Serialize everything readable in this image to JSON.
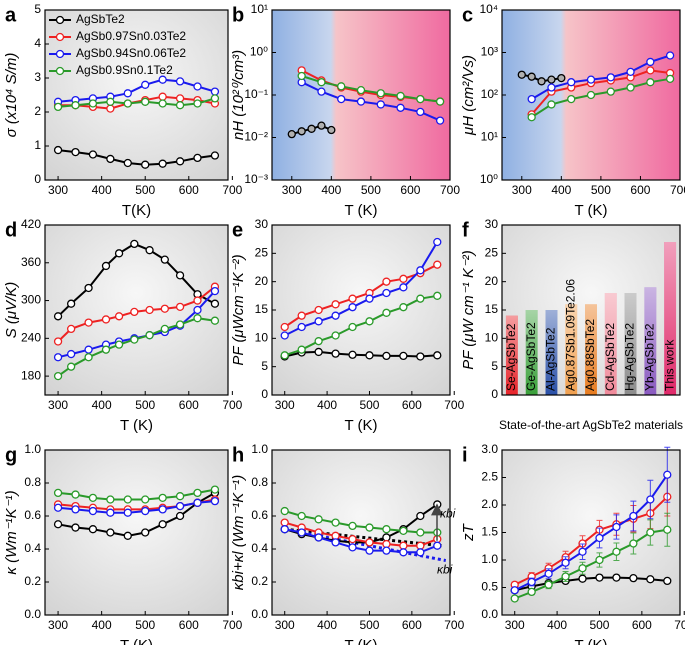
{
  "chart_data": [
    {
      "type": "line",
      "label": "a",
      "xlabel": "T(K)",
      "ylabel": "σ (x10⁴ S/m)",
      "legend": "upper left",
      "xlim": [
        270,
        690
      ],
      "xticks": [
        300,
        400,
        500,
        600,
        700
      ],
      "ylim": [
        0,
        5
      ],
      "yticks": [
        0,
        1,
        2,
        3,
        4,
        5
      ],
      "x": [
        300,
        340,
        380,
        420,
        460,
        500,
        540,
        580,
        620,
        660
      ],
      "series": [
        {
          "name": "AgSbTe2",
          "color": "#000000",
          "values": [
            0.88,
            0.82,
            0.75,
            0.62,
            0.5,
            0.45,
            0.48,
            0.55,
            0.65,
            0.72
          ]
        },
        {
          "name": "AgSb0.97Sn0.03Te2",
          "color": "#ee2222",
          "values": [
            2.2,
            2.2,
            2.15,
            2.1,
            2.25,
            2.35,
            2.45,
            2.4,
            2.35,
            2.25
          ]
        },
        {
          "name": "AgSb0.94Sn0.06Te2",
          "color": "#1a1aee",
          "values": [
            2.3,
            2.35,
            2.4,
            2.45,
            2.55,
            2.8,
            2.95,
            2.9,
            2.75,
            2.6
          ]
        },
        {
          "name": "AgSb0.9Sn0.1Te2",
          "color": "#2a9a2a",
          "values": [
            2.15,
            2.2,
            2.25,
            2.3,
            2.25,
            2.3,
            2.25,
            2.2,
            2.25,
            2.4
          ]
        }
      ]
    },
    {
      "type": "line",
      "label": "b",
      "xlabel": "T (K)",
      "ylabel": "nH (10²⁰/cm³)",
      "yscale": "log",
      "xlim": [
        250,
        700
      ],
      "xticks": [
        300,
        400,
        500,
        600,
        700
      ],
      "ylim": [
        0.001,
        10
      ],
      "yticks": [
        {
          "value": 0.001,
          "label": "10⁻³"
        },
        {
          "value": 0.01,
          "label": "10⁻²"
        },
        {
          "value": 0.1,
          "label": "10⁻¹"
        },
        {
          "value": 1,
          "label": "10⁰"
        },
        {
          "value": 10,
          "label": "10¹"
        }
      ],
      "series": [
        {
          "color": "#000000",
          "marker_fill": "#b0b0b0",
          "x": [
            300,
            325,
            350,
            375,
            400
          ],
          "values": [
            0.012,
            0.014,
            0.016,
            0.019,
            0.015
          ]
        },
        {
          "color": "#ee2222",
          "x": [
            325,
            375,
            425,
            475,
            525,
            575,
            625,
            675
          ],
          "values": [
            0.38,
            0.22,
            0.15,
            0.12,
            0.1,
            0.09,
            0.08,
            0.07
          ]
        },
        {
          "color": "#1a1aee",
          "x": [
            325,
            375,
            425,
            475,
            525,
            575,
            625,
            675
          ],
          "values": [
            0.2,
            0.12,
            0.08,
            0.07,
            0.06,
            0.05,
            0.04,
            0.025
          ]
        },
        {
          "color": "#2a9a2a",
          "x": [
            325,
            375,
            425,
            475,
            525,
            575,
            625,
            675
          ],
          "values": [
            0.28,
            0.2,
            0.16,
            0.13,
            0.11,
            0.095,
            0.08,
            0.07
          ]
        }
      ]
    },
    {
      "type": "line",
      "label": "c",
      "xlabel": "T (K)",
      "ylabel": "μH (cm²/Vs)",
      "yscale": "log",
      "xlim": [
        250,
        700
      ],
      "xticks": [
        300,
        400,
        500,
        600,
        700
      ],
      "ylim": [
        1,
        10000
      ],
      "yticks": [
        {
          "value": 1,
          "label": "10⁰"
        },
        {
          "value": 10,
          "label": "10¹"
        },
        {
          "value": 100,
          "label": "10²"
        },
        {
          "value": 1000,
          "label": "10³"
        },
        {
          "value": 10000,
          "label": "10⁴"
        }
      ],
      "series": [
        {
          "color": "#000000",
          "marker_fill": "#b0b0b0",
          "x": [
            300,
            325,
            350,
            375,
            400
          ],
          "values": [
            300,
            270,
            210,
            230,
            250
          ]
        },
        {
          "color": "#ee2222",
          "x": [
            325,
            375,
            425,
            475,
            525,
            575,
            625,
            675
          ],
          "values": [
            35,
            120,
            150,
            190,
            220,
            260,
            380,
            330
          ]
        },
        {
          "color": "#1a1aee",
          "x": [
            325,
            375,
            425,
            475,
            525,
            575,
            625,
            675
          ],
          "values": [
            80,
            150,
            200,
            230,
            260,
            350,
            600,
            850
          ]
        },
        {
          "color": "#2a9a2a",
          "x": [
            325,
            375,
            425,
            475,
            525,
            575,
            625,
            675
          ],
          "values": [
            30,
            60,
            80,
            100,
            120,
            150,
            200,
            240
          ]
        }
      ]
    },
    {
      "type": "line",
      "label": "d",
      "xlabel": "T (K)",
      "ylabel": "S (μV/K)",
      "xlim": [
        270,
        690
      ],
      "xticks": [
        300,
        400,
        500,
        600,
        700
      ],
      "ylim": [
        150,
        420
      ],
      "yticks": [
        180,
        240,
        300,
        360,
        420
      ],
      "x": [
        300,
        330,
        370,
        410,
        440,
        475,
        510,
        545,
        580,
        620,
        660
      ],
      "series": [
        {
          "color": "#000000",
          "values": [
            275,
            295,
            320,
            355,
            375,
            390,
            380,
            365,
            340,
            310,
            295
          ]
        },
        {
          "color": "#ee2222",
          "values": [
            235,
            255,
            265,
            270,
            275,
            282,
            285,
            287,
            290,
            300,
            322
          ]
        },
        {
          "color": "#1a1aee",
          "values": [
            210,
            215,
            222,
            230,
            235,
            240,
            245,
            250,
            260,
            285,
            315
          ]
        },
        {
          "color": "#2a9a2a",
          "values": [
            180,
            195,
            210,
            222,
            230,
            238,
            245,
            255,
            262,
            272,
            268
          ]
        }
      ]
    },
    {
      "type": "line",
      "label": "e",
      "xlabel": "T (K)",
      "ylabel": "PF (μWcm⁻¹K⁻²)",
      "xlim": [
        270,
        690
      ],
      "xticks": [
        300,
        400,
        500,
        600,
        700
      ],
      "ylim": [
        0,
        30
      ],
      "yticks": [
        0,
        5,
        10,
        15,
        20,
        25,
        30
      ],
      "x": [
        300,
        340,
        380,
        420,
        460,
        500,
        540,
        580,
        620,
        660
      ],
      "series": [
        {
          "color": "#000000",
          "values": [
            6.8,
            7.5,
            7.6,
            7.3,
            7.1,
            7.0,
            6.9,
            6.9,
            6.8,
            7.0
          ]
        },
        {
          "color": "#ee2222",
          "values": [
            12,
            14,
            15,
            16,
            17,
            18,
            20,
            20.5,
            21.5,
            23
          ]
        },
        {
          "color": "#1a1aee",
          "values": [
            10.5,
            12,
            13,
            14,
            15.5,
            17,
            18,
            19,
            22,
            27
          ]
        },
        {
          "color": "#2a9a2a",
          "values": [
            7,
            8,
            9.5,
            10.5,
            12,
            13,
            14.5,
            15.5,
            17,
            17.5
          ]
        }
      ]
    },
    {
      "type": "bar",
      "label": "f",
      "xlabel": "State-of-the-art AgSbTe2 materials",
      "ylabel": "PF (μW cm⁻¹ K⁻²)",
      "ylim": [
        0,
        30
      ],
      "yticks": [
        0,
        5,
        10,
        15,
        20,
        25,
        30
      ],
      "categories": [
        "Se-AgSbTe2",
        "Ge-AgSbTe2",
        "Al-AgSbTe2",
        "Ag0.87Sb1.09Te2.06",
        "Ag0.88SbTe2",
        "Cd-AgSbTe2",
        "Hg-AgSbTe2",
        "Yb-AgSbTe2",
        "This work"
      ],
      "values": [
        14,
        15,
        15,
        16,
        16,
        18,
        18,
        19,
        27
      ],
      "colors": [
        "#e8242a",
        "#3aa03a",
        "#2a50a8",
        "#f0a050",
        "#e87c20",
        "#f08a9a",
        "#8c8c8c",
        "#8a5ac0",
        "#e02a6a"
      ]
    },
    {
      "type": "line",
      "label": "g",
      "xlabel": "T (K)",
      "ylabel": "κ (Wm⁻¹K⁻¹)",
      "xlim": [
        270,
        690
      ],
      "xticks": [
        300,
        400,
        500,
        600,
        700
      ],
      "ylim": [
        0,
        1
      ],
      "yticks": [
        {
          "value": 0,
          "label": "0.0"
        },
        0.2,
        0.4,
        0.6,
        0.8,
        {
          "value": 1,
          "label": "1.0"
        }
      ],
      "x": [
        300,
        340,
        380,
        420,
        460,
        500,
        540,
        580,
        620,
        660
      ],
      "series": [
        {
          "color": "#000000",
          "values": [
            0.55,
            0.53,
            0.52,
            0.5,
            0.48,
            0.5,
            0.55,
            0.6,
            0.68,
            0.74
          ]
        },
        {
          "color": "#ee2222",
          "values": [
            0.67,
            0.66,
            0.65,
            0.64,
            0.64,
            0.64,
            0.65,
            0.66,
            0.68,
            0.7
          ]
        },
        {
          "color": "#1a1aee",
          "values": [
            0.65,
            0.64,
            0.63,
            0.62,
            0.62,
            0.63,
            0.64,
            0.66,
            0.68,
            0.69
          ]
        },
        {
          "color": "#2a9a2a",
          "values": [
            0.74,
            0.73,
            0.71,
            0.7,
            0.7,
            0.7,
            0.71,
            0.72,
            0.74,
            0.76
          ]
        }
      ]
    },
    {
      "type": "line",
      "label": "h",
      "xlabel": "T (K)",
      "ylabel": "κbi+κl (Wm⁻¹K⁻¹)",
      "xlim": [
        270,
        690
      ],
      "xticks": [
        300,
        400,
        500,
        600,
        700
      ],
      "ylim": [
        0,
        1
      ],
      "yticks": [
        {
          "value": 0,
          "label": "0.0"
        },
        0.2,
        0.4,
        0.6,
        0.8,
        {
          "value": 1,
          "label": "1.0"
        }
      ],
      "x": [
        300,
        340,
        380,
        420,
        460,
        500,
        540,
        580,
        620,
        660
      ],
      "series": [
        {
          "color": "#000000",
          "values": [
            0.52,
            0.49,
            0.47,
            0.45,
            0.44,
            0.44,
            0.47,
            0.52,
            0.6,
            0.67
          ]
        },
        {
          "color": "#ee2222",
          "values": [
            0.56,
            0.53,
            0.5,
            0.48,
            0.46,
            0.44,
            0.43,
            0.42,
            0.42,
            0.46
          ]
        },
        {
          "color": "#1a1aee",
          "values": [
            0.52,
            0.5,
            0.47,
            0.44,
            0.41,
            0.39,
            0.39,
            0.38,
            0.38,
            0.42
          ]
        },
        {
          "color": "#2a9a2a",
          "values": [
            0.63,
            0.6,
            0.58,
            0.56,
            0.54,
            0.53,
            0.52,
            0.51,
            0.5,
            0.5
          ]
        }
      ],
      "fits": [
        {
          "color": "#000000",
          "x": [
            300,
            670
          ],
          "values": [
            0.52,
            0.42
          ]
        },
        {
          "color": "#1a1aee",
          "x": [
            300,
            680
          ],
          "values": [
            0.52,
            0.33
          ]
        }
      ],
      "annotations": [
        "κbi",
        "κbi"
      ]
    },
    {
      "type": "line",
      "label": "i",
      "xlabel": "T (K)",
      "ylabel": "zT",
      "xlim": [
        270,
        690
      ],
      "xticks": [
        300,
        400,
        500,
        600,
        700
      ],
      "ylim": [
        0,
        3
      ],
      "yticks": [
        {
          "value": 0,
          "label": "0.0"
        },
        0.5,
        {
          "value": 1,
          "label": "1.0"
        },
        1.5,
        {
          "value": 2,
          "label": "2.0"
        },
        2.5,
        {
          "value": 3,
          "label": "3.0"
        }
      ],
      "x": [
        300,
        340,
        380,
        420,
        460,
        500,
        540,
        580,
        620,
        660
      ],
      "series": [
        {
          "color": "#000000",
          "values": [
            0.45,
            0.52,
            0.58,
            0.62,
            0.66,
            0.68,
            0.68,
            0.67,
            0.65,
            0.62
          ]
        },
        {
          "color": "#ee2222",
          "values": [
            0.55,
            0.7,
            0.85,
            1.05,
            1.3,
            1.55,
            1.65,
            1.75,
            1.85,
            2.15
          ],
          "errors": [
            0.05,
            0.07,
            0.09,
            0.11,
            0.14,
            0.17,
            0.2,
            0.24,
            0.28,
            0.35
          ]
        },
        {
          "color": "#1a1aee",
          "values": [
            0.45,
            0.6,
            0.75,
            0.95,
            1.15,
            1.4,
            1.6,
            1.8,
            2.1,
            2.55
          ],
          "errors": [
            0.05,
            0.07,
            0.09,
            0.11,
            0.14,
            0.18,
            0.22,
            0.27,
            0.35,
            0.5
          ]
        },
        {
          "color": "#2a9a2a",
          "values": [
            0.3,
            0.42,
            0.55,
            0.7,
            0.85,
            1.0,
            1.15,
            1.3,
            1.5,
            1.55
          ],
          "errors": [
            0.04,
            0.05,
            0.07,
            0.09,
            0.11,
            0.13,
            0.16,
            0.19,
            0.23,
            0.3
          ]
        }
      ]
    }
  ]
}
